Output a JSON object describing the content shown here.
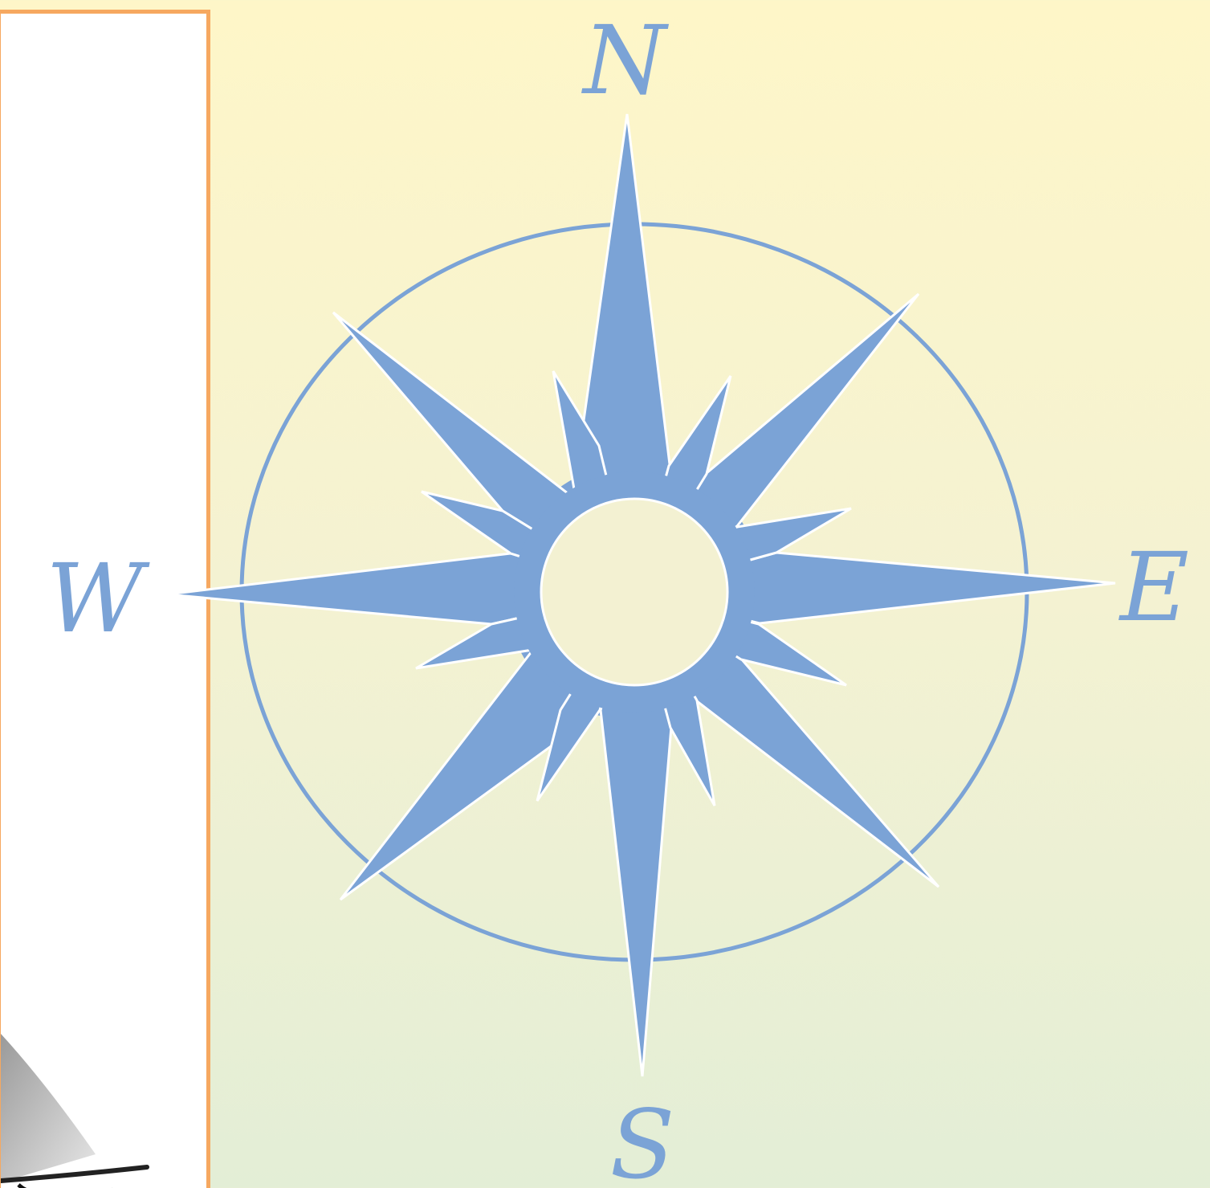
{
  "compass": {
    "labels": {
      "north": "N",
      "east": "E",
      "south": "S",
      "west": "W"
    },
    "colors": {
      "star": "#7ba3d6",
      "ring": "#7ba3d6",
      "outline": "#ffffff",
      "label": "#7ba3d6",
      "panel_border": "#f6a860",
      "panel_background": "#ffffff"
    }
  },
  "side_panel": {
    "image": "sailboat-sketch-partial"
  }
}
